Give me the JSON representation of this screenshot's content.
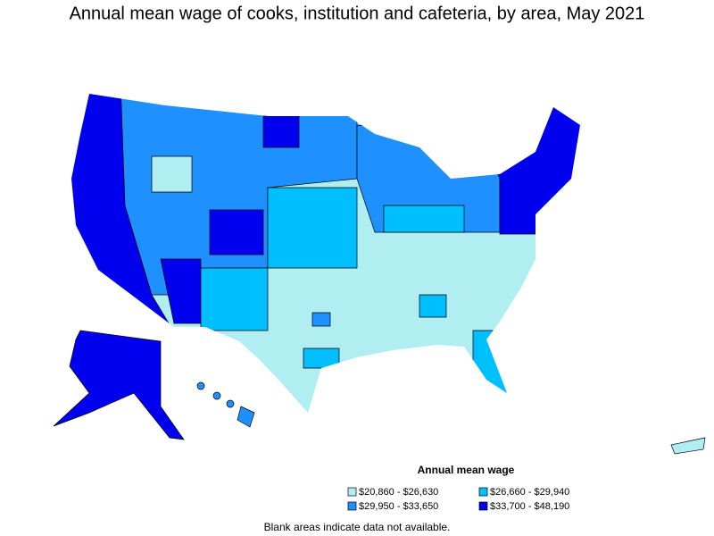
{
  "title": "Annual mean wage of cooks, institution and cafeteria, by area, May 2021",
  "legend": {
    "title": "Annual mean wage",
    "items": [
      {
        "label": "$20,860 - $26,630",
        "color": "#b0eef2"
      },
      {
        "label": "$26,660 - $29,940",
        "color": "#00bfff"
      },
      {
        "label": "$29,950 - $33,650",
        "color": "#1e90ff"
      },
      {
        "label": "$33,700 - $48,190",
        "color": "#0000ee"
      }
    ]
  },
  "note": "Blank areas indicate data not available."
}
